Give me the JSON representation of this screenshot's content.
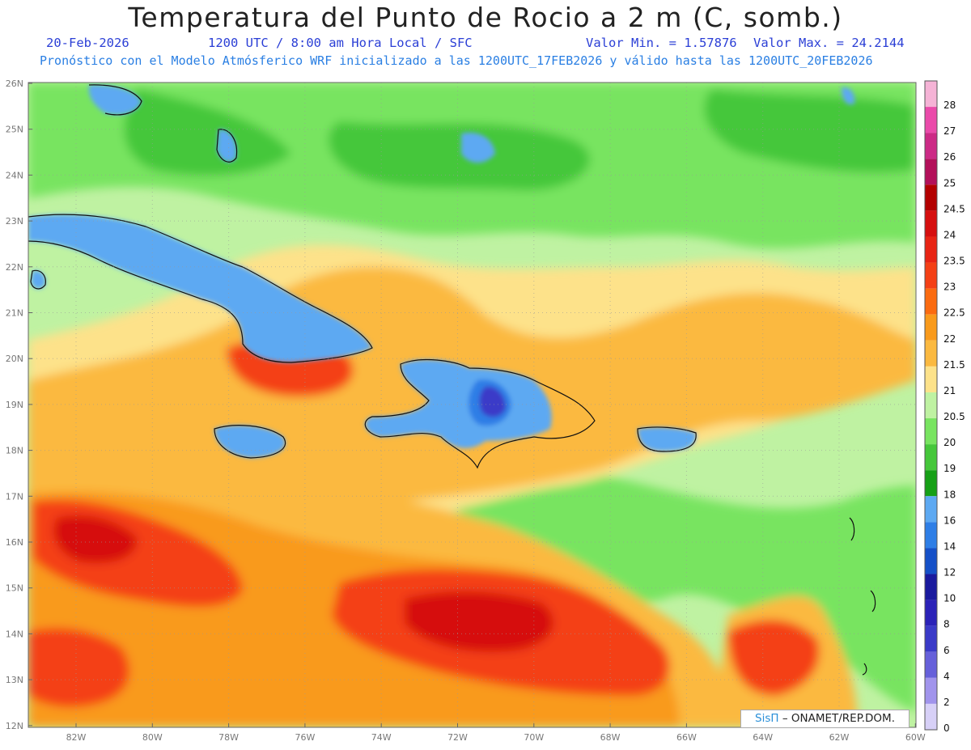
{
  "title": "Temperatura del Punto de Rocio a 2 m (C, somb.)",
  "subtitle": {
    "date": "20-Feb-2026",
    "time": "1200 UTC / 8:00 am Hora Local / SFC",
    "min": "Valor Min. = 1.57876",
    "max": "Valor Max. = 24.2144"
  },
  "model_line": "Pronóstico con el Modelo Atmósferico WRF inicializado a las 1200UTC_17FEB2026 y válido hasta las  1200UTC_20FEB2026",
  "credit": {
    "brand": "SisΠ",
    "text": "– ONAMET/REP.DOM."
  },
  "lat_ticks": [
    "26N",
    "25N",
    "24N",
    "23N",
    "22N",
    "21N",
    "20N",
    "19N",
    "18N",
    "17N",
    "16N",
    "15N",
    "14N",
    "13N",
    "12N"
  ],
  "lon_ticks": [
    "82W",
    "80W",
    "78W",
    "76W",
    "74W",
    "72W",
    "70W",
    "68W",
    "66W",
    "64W",
    "62W",
    "60W"
  ],
  "colorbar": {
    "labels": [
      "28",
      "27",
      "26",
      "25",
      "24.5",
      "24",
      "23.5",
      "23",
      "22.5",
      "22",
      "21.5",
      "21",
      "20.5",
      "20",
      "19",
      "18",
      "16",
      "14",
      "12",
      "10",
      "8",
      "6",
      "4",
      "2",
      "0"
    ],
    "colors": [
      "#f5b3d6",
      "#ea4aaa",
      "#cc2a86",
      "#b3105a",
      "#b30000",
      "#d60f0f",
      "#e82414",
      "#f44015",
      "#fb6b10",
      "#f99a1b",
      "#fbb940",
      "#fde28a",
      "#bff2a2",
      "#78e460",
      "#45c73a",
      "#16a016",
      "#5da9f2",
      "#2e7ee6",
      "#1550c8",
      "#1a1a9e",
      "#2b22b8",
      "#3a3ac8",
      "#6660da",
      "#a194ec",
      "#d7d0f7"
    ]
  },
  "map": {
    "layers": [
      {
        "name": "base-moist",
        "color": "#bff2a2"
      },
      {
        "name": "north-green",
        "color": "#78e460"
      },
      {
        "name": "north-dark-green",
        "color": "#45c73a"
      },
      {
        "name": "yellow-band",
        "color": "#fde28a"
      },
      {
        "name": "orange-band",
        "color": "#fbb940"
      },
      {
        "name": "orange-deep",
        "color": "#f99a1b"
      },
      {
        "name": "red-hot",
        "color": "#f44015"
      },
      {
        "name": "red-core",
        "color": "#d60f0f"
      },
      {
        "name": "land-blue",
        "color": "#5da9f2"
      },
      {
        "name": "land-deep-blue",
        "color": "#2e7ee6"
      },
      {
        "name": "mountain-purple",
        "color": "#3a3ac8"
      }
    ]
  }
}
